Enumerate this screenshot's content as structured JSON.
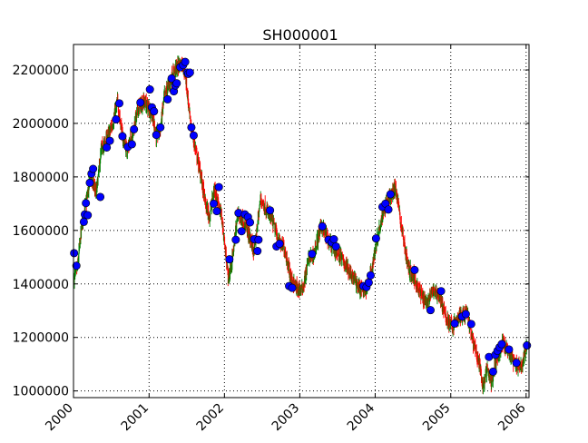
{
  "chart_data": {
    "type": "candlestick-with-scatter",
    "title": "SH000001",
    "xlabel": "",
    "ylabel": "",
    "grid": true,
    "x_type": "date",
    "xlim": [
      "2000-01-01",
      "2006-01-15"
    ],
    "ylim": [
      975000,
      2295000
    ],
    "x_ticks": [
      "2000",
      "2001",
      "2002",
      "2003",
      "2004",
      "2005",
      "2006"
    ],
    "y_ticks": [
      1000000,
      1200000,
      1400000,
      1600000,
      1800000,
      2000000,
      2200000
    ],
    "y_tick_labels": [
      "1000000",
      "1200000",
      "1400000",
      "1600000",
      "1800000",
      "2000000",
      "2200000"
    ],
    "colors": {
      "up": "#008000",
      "down": "#ff0000",
      "marker": "#0000ff",
      "grid": "#000000"
    },
    "price_path": [
      [
        "2000-01-04",
        1420000
      ],
      [
        "2000-01-20",
        1460000
      ],
      [
        "2000-02-10",
        1620000
      ],
      [
        "2000-03-01",
        1700000
      ],
      [
        "2000-03-25",
        1800000
      ],
      [
        "2000-04-20",
        1740000
      ],
      [
        "2000-05-15",
        1900000
      ],
      [
        "2000-06-15",
        1950000
      ],
      [
        "2000-07-10",
        2000000
      ],
      [
        "2000-08-01",
        2080000
      ],
      [
        "2000-08-25",
        1950000
      ],
      [
        "2000-09-15",
        1900000
      ],
      [
        "2000-10-10",
        1950000
      ],
      [
        "2000-11-10",
        2060000
      ],
      [
        "2000-12-10",
        2080000
      ],
      [
        "2001-01-15",
        2040000
      ],
      [
        "2001-02-05",
        1950000
      ],
      [
        "2001-02-25",
        1980000
      ],
      [
        "2001-03-15",
        2100000
      ],
      [
        "2001-04-10",
        2150000
      ],
      [
        "2001-05-05",
        2200000
      ],
      [
        "2001-06-10",
        2230000
      ],
      [
        "2001-06-25",
        2190000
      ],
      [
        "2001-07-20",
        2000000
      ],
      [
        "2001-08-15",
        1900000
      ],
      [
        "2001-09-10",
        1800000
      ],
      [
        "2001-10-01",
        1700000
      ],
      [
        "2001-10-20",
        1650000
      ],
      [
        "2001-11-15",
        1760000
      ],
      [
        "2001-12-20",
        1640000
      ],
      [
        "2002-01-20",
        1420000
      ],
      [
        "2002-02-10",
        1500000
      ],
      [
        "2002-03-05",
        1660000
      ],
      [
        "2002-04-01",
        1640000
      ],
      [
        "2002-05-01",
        1580000
      ],
      [
        "2002-05-25",
        1520000
      ],
      [
        "2002-06-25",
        1720000
      ],
      [
        "2002-07-20",
        1680000
      ],
      [
        "2002-08-20",
        1640000
      ],
      [
        "2002-09-20",
        1560000
      ],
      [
        "2002-10-20",
        1530000
      ],
      [
        "2002-11-20",
        1420000
      ],
      [
        "2002-12-20",
        1380000
      ],
      [
        "2003-01-15",
        1380000
      ],
      [
        "2003-02-15",
        1500000
      ],
      [
        "2003-03-10",
        1510000
      ],
      [
        "2003-04-15",
        1620000
      ],
      [
        "2003-05-20",
        1560000
      ],
      [
        "2003-06-20",
        1530000
      ],
      [
        "2003-07-20",
        1500000
      ],
      [
        "2003-08-20",
        1460000
      ],
      [
        "2003-09-20",
        1420000
      ],
      [
        "2003-10-20",
        1380000
      ],
      [
        "2003-11-15",
        1380000
      ],
      [
        "2003-12-15",
        1450000
      ],
      [
        "2004-01-10",
        1570000
      ],
      [
        "2004-02-10",
        1680000
      ],
      [
        "2004-03-10",
        1720000
      ],
      [
        "2004-04-10",
        1760000
      ],
      [
        "2004-05-10",
        1600000
      ],
      [
        "2004-06-10",
        1460000
      ],
      [
        "2004-07-10",
        1420000
      ],
      [
        "2004-08-10",
        1360000
      ],
      [
        "2004-09-10",
        1330000
      ],
      [
        "2004-10-10",
        1380000
      ],
      [
        "2004-11-10",
        1350000
      ],
      [
        "2004-12-10",
        1270000
      ],
      [
        "2005-01-10",
        1240000
      ],
      [
        "2005-02-15",
        1280000
      ],
      [
        "2005-03-20",
        1290000
      ],
      [
        "2005-04-20",
        1180000
      ],
      [
        "2005-05-20",
        1100000
      ],
      [
        "2005-06-05",
        1010000
      ],
      [
        "2005-06-25",
        1080000
      ],
      [
        "2005-07-15",
        1030000
      ],
      [
        "2005-08-10",
        1120000
      ],
      [
        "2005-09-10",
        1180000
      ],
      [
        "2005-10-10",
        1140000
      ],
      [
        "2005-11-10",
        1100000
      ],
      [
        "2005-12-10",
        1090000
      ],
      [
        "2006-01-05",
        1170000
      ]
    ],
    "markers": [
      [
        "2000-01-04",
        1515000
      ],
      [
        "2000-01-15",
        1468000
      ],
      [
        "2000-02-20",
        1632000
      ],
      [
        "2000-02-25",
        1660000
      ],
      [
        "2000-03-01",
        1702000
      ],
      [
        "2000-03-10",
        1657000
      ],
      [
        "2000-03-20",
        1778000
      ],
      [
        "2000-03-28",
        1812000
      ],
      [
        "2000-04-05",
        1830000
      ],
      [
        "2000-05-10",
        1725000
      ],
      [
        "2000-06-10",
        1910000
      ],
      [
        "2000-06-25",
        1935000
      ],
      [
        "2000-07-25",
        2015000
      ],
      [
        "2000-08-10",
        2075000
      ],
      [
        "2000-08-25",
        1952000
      ],
      [
        "2000-09-20",
        1912000
      ],
      [
        "2000-10-10",
        1922000
      ],
      [
        "2000-10-20",
        1978000
      ],
      [
        "2000-11-20",
        2078000
      ],
      [
        "2001-01-05",
        2127000
      ],
      [
        "2001-01-15",
        2060000
      ],
      [
        "2001-01-25",
        2045000
      ],
      [
        "2001-02-05",
        1957000
      ],
      [
        "2001-02-25",
        1985000
      ],
      [
        "2001-04-01",
        2090000
      ],
      [
        "2001-04-20",
        2168000
      ],
      [
        "2001-05-01",
        2120000
      ],
      [
        "2001-05-08",
        2142000
      ],
      [
        "2001-05-15",
        2150000
      ],
      [
        "2001-06-01",
        2210000
      ],
      [
        "2001-06-15",
        2218000
      ],
      [
        "2001-06-25",
        2230000
      ],
      [
        "2001-07-05",
        2190000
      ],
      [
        "2001-07-10",
        2185000
      ],
      [
        "2001-07-18",
        2190000
      ],
      [
        "2001-07-25",
        1985000
      ],
      [
        "2001-08-05",
        1955000
      ],
      [
        "2001-11-10",
        1700000
      ],
      [
        "2001-11-25",
        1672000
      ],
      [
        "2001-12-05",
        1762000
      ],
      [
        "2002-01-25",
        1492000
      ],
      [
        "2002-02-25",
        1565000
      ],
      [
        "2002-03-10",
        1665000
      ],
      [
        "2002-03-25",
        1597000
      ],
      [
        "2002-04-10",
        1660000
      ],
      [
        "2002-04-25",
        1650000
      ],
      [
        "2002-05-05",
        1630000
      ],
      [
        "2002-05-25",
        1567000
      ],
      [
        "2002-06-10",
        1523000
      ],
      [
        "2002-06-15",
        1565000
      ],
      [
        "2002-08-10",
        1675000
      ],
      [
        "2002-09-10",
        1540000
      ],
      [
        "2002-09-25",
        1550000
      ],
      [
        "2002-11-10",
        1392000
      ],
      [
        "2002-11-25",
        1385000
      ],
      [
        "2003-03-01",
        1512000
      ],
      [
        "2003-04-20",
        1615000
      ],
      [
        "2003-05-20",
        1565000
      ],
      [
        "2003-06-05",
        1555000
      ],
      [
        "2003-06-15",
        1567000
      ],
      [
        "2003-06-25",
        1540000
      ],
      [
        "2003-11-05",
        1392000
      ],
      [
        "2003-11-20",
        1388000
      ],
      [
        "2003-12-01",
        1405000
      ],
      [
        "2003-12-10",
        1432000
      ],
      [
        "2004-01-05",
        1570000
      ],
      [
        "2004-02-05",
        1688000
      ],
      [
        "2004-02-20",
        1700000
      ],
      [
        "2004-03-05",
        1678000
      ],
      [
        "2004-03-15",
        1735000
      ],
      [
        "2004-07-10",
        1452000
      ],
      [
        "2004-09-25",
        1302000
      ],
      [
        "2004-11-15",
        1373000
      ],
      [
        "2005-01-20",
        1252000
      ],
      [
        "2005-02-25",
        1278000
      ],
      [
        "2005-03-15",
        1287000
      ],
      [
        "2005-04-10",
        1250000
      ],
      [
        "2005-07-05",
        1127000
      ],
      [
        "2005-07-25",
        1072000
      ],
      [
        "2005-08-05",
        1135000
      ],
      [
        "2005-08-15",
        1150000
      ],
      [
        "2005-08-25",
        1163000
      ],
      [
        "2005-09-05",
        1175000
      ],
      [
        "2005-10-10",
        1155000
      ],
      [
        "2005-11-15",
        1105000
      ],
      [
        "2006-01-05",
        1170000
      ]
    ]
  }
}
